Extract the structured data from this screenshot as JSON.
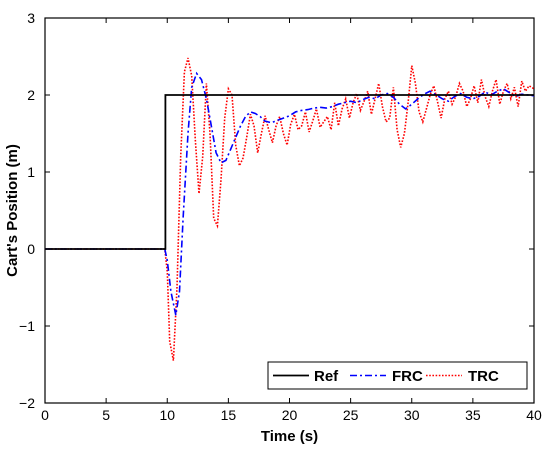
{
  "chart_data": {
    "type": "line",
    "xlabel": "Time (s)",
    "ylabel": "Cart's Position (m)",
    "xlim": [
      0,
      40
    ],
    "ylim": [
      -2,
      3
    ],
    "xticks": [
      0,
      5,
      10,
      15,
      20,
      25,
      30,
      35,
      40
    ],
    "yticks": [
      -2,
      -1,
      0,
      1,
      2,
      3
    ],
    "grid": false,
    "legend_position": "bottom-right",
    "series": [
      {
        "name": "Ref",
        "color": "#000000",
        "style": "solid",
        "x": [
          0,
          9.85,
          9.85,
          40
        ],
        "y": [
          0,
          0,
          2,
          2
        ]
      },
      {
        "name": "FRC",
        "color": "#0000ff",
        "style": "dashdot",
        "x": [
          0,
          9.8,
          10,
          10.3,
          10.7,
          11.0,
          11.3,
          11.7,
          12.0,
          12.4,
          12.8,
          13.2,
          13.6,
          14.0,
          14.4,
          14.8,
          15.2,
          15.6,
          16.0,
          16.4,
          16.8,
          17.2,
          17.6,
          18.0,
          18.5,
          19.0,
          19.5,
          20.0,
          20.5,
          21.0,
          21.5,
          22.0,
          22.5,
          23.0,
          23.5,
          24.0,
          24.5,
          25.0,
          25.5,
          26.0,
          26.5,
          27.0,
          27.5,
          28.0,
          28.5,
          29.0,
          29.5,
          30.0,
          30.5,
          31.0,
          31.5,
          32.0,
          32.5,
          33.0,
          33.5,
          34.0,
          34.5,
          35.0,
          35.5,
          36.0,
          36.5,
          37.0,
          37.5,
          38.0,
          38.5,
          39.0,
          39.5,
          40.0
        ],
        "y": [
          0,
          0,
          -0.15,
          -0.55,
          -0.86,
          -0.55,
          0.4,
          1.5,
          2.1,
          2.28,
          2.2,
          1.95,
          1.6,
          1.25,
          1.12,
          1.15,
          1.3,
          1.45,
          1.6,
          1.72,
          1.78,
          1.76,
          1.72,
          1.66,
          1.64,
          1.67,
          1.7,
          1.73,
          1.78,
          1.8,
          1.81,
          1.83,
          1.84,
          1.83,
          1.85,
          1.88,
          1.9,
          1.92,
          1.9,
          1.94,
          1.97,
          1.95,
          2.0,
          2.02,
          1.97,
          1.88,
          1.82,
          1.88,
          1.95,
          2.01,
          2.05,
          2.0,
          1.95,
          1.92,
          1.98,
          2.02,
          1.97,
          1.95,
          1.98,
          2.04,
          2.0,
          2.05,
          2.08,
          2.03,
          1.98,
          2.01,
          2.0,
          1.99
        ]
      },
      {
        "name": "TRC",
        "color": "#ff0000",
        "style": "dotted",
        "x": [
          0,
          9.8,
          10.0,
          10.2,
          10.5,
          10.8,
          11.1,
          11.4,
          11.7,
          12.0,
          12.3,
          12.6,
          12.9,
          13.2,
          13.5,
          13.8,
          14.1,
          14.4,
          14.7,
          15.0,
          15.3,
          15.6,
          15.9,
          16.2,
          16.5,
          16.8,
          17.1,
          17.4,
          17.7,
          18.0,
          18.3,
          18.6,
          18.9,
          19.2,
          19.5,
          19.8,
          20.1,
          20.4,
          20.7,
          21.0,
          21.3,
          21.6,
          21.9,
          22.2,
          22.5,
          22.8,
          23.1,
          23.4,
          23.7,
          24.0,
          24.3,
          24.6,
          24.9,
          25.2,
          25.5,
          25.8,
          26.1,
          26.4,
          26.7,
          27.0,
          27.3,
          27.6,
          27.9,
          28.2,
          28.5,
          28.8,
          29.1,
          29.4,
          29.7,
          30.0,
          30.3,
          30.6,
          30.9,
          31.2,
          31.5,
          31.8,
          32.1,
          32.4,
          32.7,
          33.0,
          33.3,
          33.6,
          33.9,
          34.2,
          34.5,
          34.8,
          35.1,
          35.4,
          35.7,
          36.0,
          36.3,
          36.6,
          36.9,
          37.2,
          37.5,
          37.8,
          38.1,
          38.4,
          38.7,
          39.0,
          39.3,
          39.6,
          40.0
        ],
        "y": [
          0,
          0,
          -0.3,
          -1.2,
          -1.45,
          -0.5,
          1.2,
          2.3,
          2.48,
          2.25,
          1.4,
          0.72,
          1.2,
          2.15,
          1.5,
          0.4,
          0.3,
          0.9,
          1.7,
          2.08,
          2.0,
          1.35,
          1.08,
          1.18,
          1.45,
          1.75,
          1.6,
          1.25,
          1.5,
          1.73,
          1.55,
          1.38,
          1.6,
          1.72,
          1.5,
          1.35,
          1.62,
          1.75,
          1.55,
          1.6,
          1.78,
          1.52,
          1.66,
          1.82,
          1.58,
          1.65,
          1.72,
          1.55,
          1.9,
          1.6,
          1.82,
          1.95,
          1.7,
          1.9,
          2.02,
          1.8,
          1.92,
          2.05,
          1.75,
          1.95,
          2.15,
          1.85,
          1.65,
          1.7,
          2.1,
          1.55,
          1.32,
          1.5,
          1.9,
          2.38,
          2.15,
          1.78,
          1.65,
          1.82,
          2.0,
          2.12,
          1.92,
          1.7,
          1.95,
          2.05,
          1.88,
          1.98,
          2.15,
          2.05,
          1.85,
          1.95,
          2.12,
          1.9,
          2.2,
          1.98,
          1.85,
          2.05,
          2.2,
          1.88,
          2.05,
          2.15,
          1.95,
          2.1,
          1.85,
          2.18,
          2.05,
          2.12,
          2.08
        ]
      }
    ]
  }
}
